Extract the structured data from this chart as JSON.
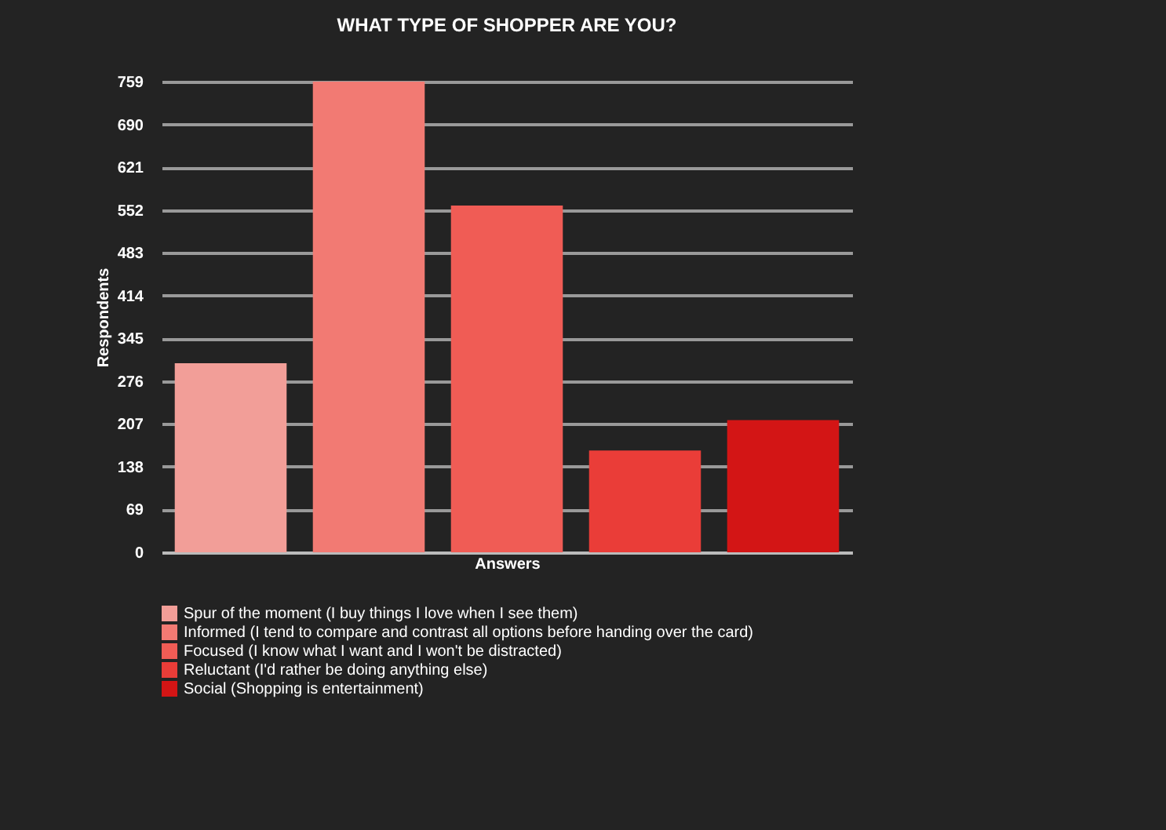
{
  "chart_data": {
    "type": "bar",
    "title": "WHAT TYPE OF SHOPPER ARE YOU?",
    "xlabel": "Answers",
    "ylabel": "Respondents",
    "categories": [
      null,
      null,
      null,
      null,
      null
    ],
    "series": [
      {
        "name": "Spur of the moment (I buy things I love when I see them)",
        "color": "#f29e98",
        "values": [
          305,
          null,
          null,
          null,
          null
        ]
      },
      {
        "name": "Informed (I tend to compare and contrast all options before handing over the card)",
        "color": "#f27a73",
        "values": [
          null,
          759,
          null,
          null,
          null
        ]
      },
      {
        "name": "Focused (I know what I want and I won't be distracted)",
        "color": "#f05c55",
        "values": [
          null,
          null,
          559,
          null,
          null
        ]
      },
      {
        "name": "Reluctant (I'd rather be doing anything else)",
        "color": "#ea3d38",
        "values": [
          null,
          null,
          null,
          164,
          null
        ]
      },
      {
        "name": "Social (Shopping is entertainment)",
        "color": "#d31515",
        "values": [
          null,
          null,
          null,
          null,
          213
        ]
      }
    ],
    "stacked": true,
    "ylim": [
      0,
      759
    ],
    "yticks": [
      0,
      69,
      138,
      207,
      276,
      345,
      414,
      483,
      552,
      621,
      690,
      759
    ],
    "grid": "y",
    "legend": "bottom",
    "tick_labels": "y"
  }
}
